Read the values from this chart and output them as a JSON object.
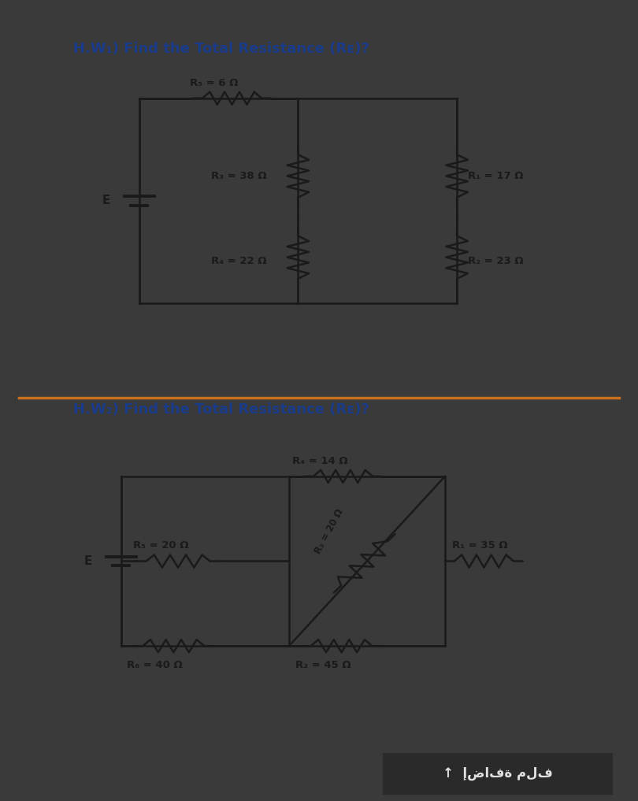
{
  "panel_color": "#c8c8c8",
  "dark_bg": "#3a3a3a",
  "title1": "H.W₁) Find the Total Resistance (Rᴇ)?",
  "title2": "H.W₂) Find the Total Resistance (Rᴇ)?",
  "title_color": "#1a3a8a",
  "line_color": "#1a1a1a",
  "divider_color": "#c87020",
  "btn_color": "#2a2a2a",
  "btn_text": "↑  إضافة ملف",
  "btn_text_color": "#e0e0e0"
}
